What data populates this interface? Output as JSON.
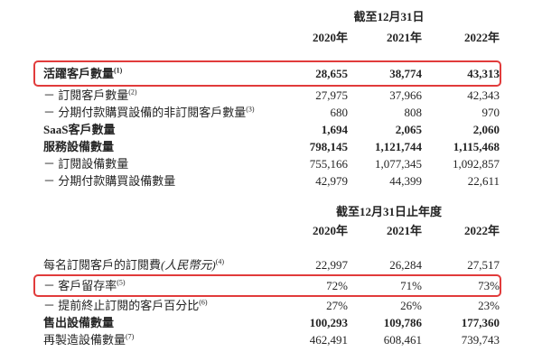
{
  "page": {
    "background": "#ffffff",
    "text_color": "#242424",
    "highlight_color": "#e13b3b"
  },
  "tables": [
    {
      "period_header": "截至12月31日",
      "years": [
        "2020年",
        "2021年",
        "2022年"
      ],
      "rows": [
        {
          "label": "活躍客戶數量",
          "sup": "(1)",
          "values": [
            "28,655",
            "38,774",
            "43,313"
          ],
          "bold": true,
          "highlighted": true
        },
        {
          "label": "－ 訂閱客戶數量",
          "sup": "(2)",
          "values": [
            "27,975",
            "37,966",
            "42,343"
          ]
        },
        {
          "label": "－ 分期付款購買設備的非訂閱客戶數量",
          "sup": "(3)",
          "values": [
            "680",
            "808",
            "970"
          ]
        },
        {
          "label": "SaaS客戶數量",
          "values": [
            "1,694",
            "2,065",
            "2,060"
          ],
          "bold": true
        },
        {
          "label": "服務設備數量",
          "values": [
            "798,145",
            "1,121,744",
            "1,115,468"
          ],
          "bold": true
        },
        {
          "label": "－ 訂閱設備數量",
          "values": [
            "755,166",
            "1,077,345",
            "1,092,857"
          ]
        },
        {
          "label": "－ 分期付款購買設備數量",
          "values": [
            "42,979",
            "44,399",
            "22,611"
          ]
        }
      ]
    },
    {
      "period_header": "截至12月31日止年度",
      "years": [
        "2020年",
        "2021年",
        "2022年"
      ],
      "rows": [
        {
          "label": "每名訂閱客戶的訂閱費",
          "label_paren": "(人民幣元)",
          "sup": "(4)",
          "values": [
            "22,997",
            "26,284",
            "27,517"
          ]
        },
        {
          "label": "－ 客戶留存率",
          "sup": "(5)",
          "values": [
            "72%",
            "71%",
            "73%"
          ],
          "highlighted": true
        },
        {
          "label": "－ 提前終止訂閱的客戶百分比",
          "sup": "(6)",
          "values": [
            "27%",
            "26%",
            "23%"
          ]
        },
        {
          "label": "售出設備數量",
          "values": [
            "100,293",
            "109,786",
            "177,360"
          ],
          "bold": true
        },
        {
          "label": "再製造設備數量",
          "sup": "(7)",
          "values": [
            "462,491",
            "608,461",
            "739,743"
          ]
        }
      ]
    }
  ]
}
